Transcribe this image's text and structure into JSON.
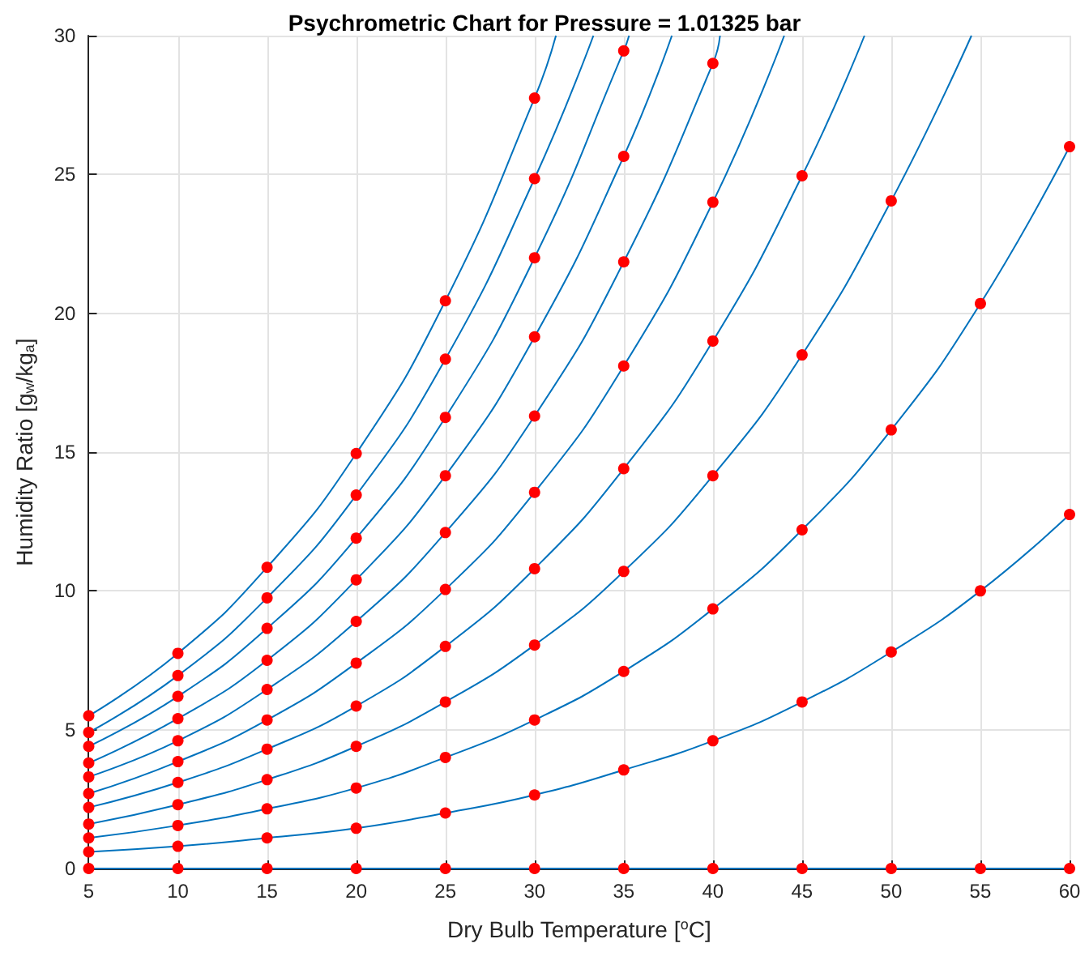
{
  "chart_data": {
    "type": "line",
    "title": "Psychrometric Chart for Pressure = 1.01325 bar",
    "xlabel": "Dry Bulb Temperature [$^{o}$C]",
    "ylabel": "Humidity Ratio [g$_{w}$/kg$_{a}$]",
    "xlim": [
      5,
      60
    ],
    "xticks": [
      5,
      10,
      15,
      20,
      25,
      30,
      35,
      40,
      45,
      50,
      55,
      60
    ],
    "ylim": [
      0,
      30
    ],
    "yticks": [
      0,
      5,
      10,
      15,
      20,
      25,
      30
    ],
    "grid": true,
    "series": [
      {
        "color": "#0072bd",
        "marker": "none",
        "x": [
          5,
          10,
          15,
          20,
          25,
          30,
          35,
          40,
          45,
          50,
          55,
          60
        ],
        "values": [
          0,
          0,
          0,
          0,
          0,
          0,
          0,
          0,
          0,
          0,
          0,
          0
        ]
      },
      {
        "color": "#0072bd",
        "marker": "none",
        "x": [
          5,
          10,
          15,
          20,
          25,
          30,
          35,
          40,
          45,
          50,
          55,
          60
        ],
        "values": [
          0.6,
          0.8,
          1.1,
          1.45,
          2.0,
          2.65,
          3.55,
          4.6,
          6.0,
          7.8,
          10.0,
          12.75
        ]
      },
      {
        "color": "#0072bd",
        "marker": "none",
        "x": [
          5,
          10,
          15,
          20,
          25,
          30,
          35,
          40,
          45,
          50,
          55,
          60
        ],
        "values": [
          1.1,
          1.55,
          2.15,
          2.9,
          4.0,
          5.35,
          7.1,
          9.35,
          12.2,
          15.8,
          20.35,
          26.0
        ]
      },
      {
        "color": "#0072bd",
        "marker": "none",
        "x": [
          5,
          10,
          15,
          20,
          25,
          30,
          35,
          40,
          45,
          50,
          54.5
        ],
        "values": [
          1.6,
          2.3,
          3.2,
          4.4,
          6.0,
          8.05,
          10.7,
          14.15,
          18.5,
          24.05,
          30
        ]
      },
      {
        "color": "#0072bd",
        "marker": "none",
        "x": [
          5,
          10,
          15,
          20,
          25,
          30,
          35,
          40,
          45,
          48.5
        ],
        "values": [
          2.2,
          3.1,
          4.3,
          5.85,
          8.0,
          10.8,
          14.4,
          19.0,
          24.95,
          30
        ]
      },
      {
        "color": "#0072bd",
        "marker": "none",
        "x": [
          5,
          10,
          15,
          20,
          25,
          30,
          35,
          40,
          44
        ],
        "values": [
          2.7,
          3.85,
          5.35,
          7.4,
          10.05,
          13.55,
          18.1,
          24.0,
          30
        ]
      },
      {
        "color": "#0072bd",
        "marker": "none",
        "x": [
          5,
          10,
          15,
          20,
          25,
          30,
          35,
          40,
          40.4
        ],
        "values": [
          3.3,
          4.6,
          6.45,
          8.9,
          12.1,
          16.3,
          21.85,
          29.0,
          30
        ]
      },
      {
        "color": "#0072bd",
        "marker": "none",
        "x": [
          5,
          10,
          15,
          20,
          25,
          30,
          35,
          37.7
        ],
        "values": [
          3.8,
          5.4,
          7.5,
          10.4,
          14.15,
          19.15,
          25.65,
          30
        ]
      },
      {
        "color": "#0072bd",
        "marker": "none",
        "x": [
          5,
          10,
          15,
          20,
          25,
          30,
          35,
          35.3
        ],
        "values": [
          4.4,
          6.2,
          8.65,
          11.9,
          16.25,
          22.0,
          29.45,
          30
        ]
      },
      {
        "color": "#0072bd",
        "marker": "none",
        "x": [
          5,
          10,
          15,
          20,
          25,
          30,
          33.3
        ],
        "values": [
          4.9,
          6.95,
          9.75,
          13.45,
          18.35,
          24.85,
          30
        ]
      },
      {
        "color": "#0072bd",
        "marker": "none",
        "x": [
          5,
          10,
          15,
          20,
          25,
          30,
          31.2
        ],
        "values": [
          5.5,
          7.75,
          10.85,
          14.95,
          20.45,
          27.75,
          30
        ]
      },
      {
        "type": "scatter",
        "color": "#ff0000",
        "marker": "circle",
        "x": [
          5,
          10,
          15,
          20,
          25,
          30,
          35,
          40,
          45,
          50,
          55,
          60,
          5,
          10,
          15,
          20,
          25,
          30,
          35,
          40,
          45,
          50,
          55,
          60,
          5,
          10,
          15,
          20,
          25,
          30,
          35,
          40,
          45,
          50,
          55,
          60,
          5,
          10,
          15,
          20,
          25,
          30,
          35,
          40,
          45,
          50,
          5,
          10,
          15,
          20,
          25,
          30,
          35,
          40,
          45,
          5,
          10,
          15,
          20,
          25,
          30,
          35,
          40,
          5,
          10,
          15,
          20,
          25,
          30,
          35,
          40,
          5,
          10,
          15,
          20,
          25,
          30,
          35,
          5,
          10,
          15,
          20,
          25,
          30,
          35,
          5,
          10,
          15,
          20,
          25,
          30,
          5,
          10,
          15,
          20,
          25,
          30
        ],
        "values": [
          0,
          0,
          0,
          0,
          0,
          0,
          0,
          0,
          0,
          0,
          0,
          0,
          0.6,
          0.8,
          1.1,
          1.45,
          2.0,
          2.65,
          3.55,
          4.6,
          6.0,
          7.8,
          10.0,
          12.75,
          1.1,
          1.55,
          2.15,
          2.9,
          4.0,
          5.35,
          7.1,
          9.35,
          12.2,
          15.8,
          20.35,
          26.0,
          1.6,
          2.3,
          3.2,
          4.4,
          6.0,
          8.05,
          10.7,
          14.15,
          18.5,
          24.05,
          2.2,
          3.1,
          4.3,
          5.85,
          8.0,
          10.8,
          14.4,
          19.0,
          24.95,
          2.7,
          3.85,
          5.35,
          7.4,
          10.05,
          13.55,
          18.1,
          24.0,
          3.3,
          4.6,
          6.45,
          8.9,
          12.1,
          16.3,
          21.85,
          29.0,
          3.8,
          5.4,
          7.5,
          10.4,
          14.15,
          19.15,
          25.65,
          4.4,
          6.2,
          8.65,
          11.9,
          16.25,
          22.0,
          29.45,
          4.9,
          6.95,
          9.75,
          13.45,
          18.35,
          24.85,
          5.5,
          7.75,
          10.85,
          14.95,
          20.45,
          27.75
        ]
      }
    ]
  }
}
